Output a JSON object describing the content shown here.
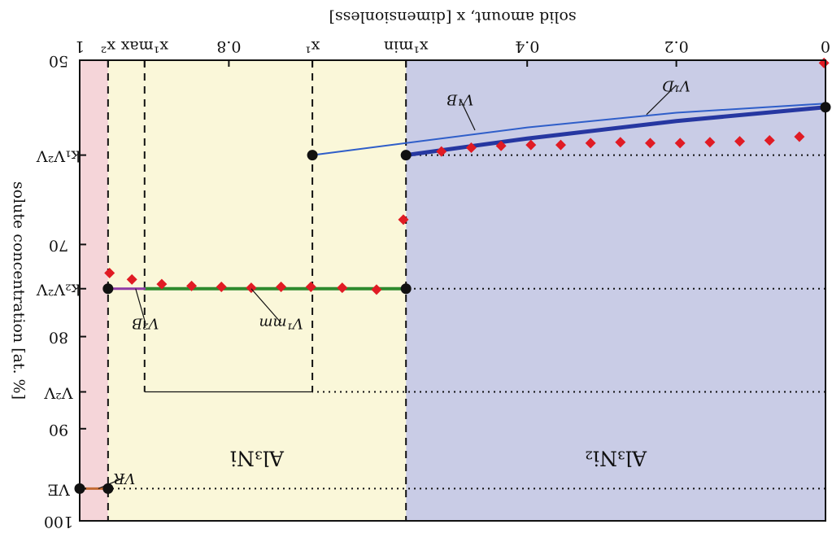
{
  "chart_data": {
    "type": "line",
    "orientation_note": "image is rotated 180 degrees",
    "xlabel": "solid amount, x [dimensionless]",
    "ylabel": "solute concentration [at. %]",
    "xlim": [
      0,
      1
    ],
    "ylim": [
      50,
      100
    ],
    "x_ticks": [
      {
        "value": 0,
        "label": "0"
      },
      {
        "value": 0.2,
        "label": "0.2"
      },
      {
        "value": 0.4,
        "label": "0.4"
      },
      {
        "value": 0.5625,
        "label": "x¹min"
      },
      {
        "value": 0.688,
        "label": "x¹"
      },
      {
        "value": 0.8,
        "label": "0.8"
      },
      {
        "value": 0.913,
        "label": "x¹max"
      },
      {
        "value": 0.962,
        "label": "x²"
      },
      {
        "value": 1,
        "label": "1"
      }
    ],
    "y_ticks": [
      {
        "value": 50,
        "label": "50"
      },
      {
        "value": 60.3,
        "label": "k₁V²V"
      },
      {
        "value": 70,
        "label": "70"
      },
      {
        "value": 74.8,
        "label": "k₂V²V"
      },
      {
        "value": 80,
        "label": "80"
      },
      {
        "value": 86,
        "label": "V²V"
      },
      {
        "value": 90,
        "label": "90"
      },
      {
        "value": 96.5,
        "label": "VE"
      },
      {
        "value": 100,
        "label": "100"
      }
    ],
    "regions": [
      {
        "label": "Al₃Ni₂",
        "x": [
          0,
          0.5625
        ],
        "color": "#c9cce6"
      },
      {
        "label": "Al₃Ni",
        "x": [
          0.5625,
          0.962
        ],
        "color": "#faf7d9"
      },
      {
        "label": "",
        "x": [
          0.962,
          1
        ],
        "color": "#f5d5d9"
      }
    ],
    "series": [
      {
        "color": "#2637a1",
        "x": [
          0,
          0.2,
          0.4,
          0.5625
        ],
        "y": [
          55.1,
          56.6,
          58.5,
          60.3
        ]
      },
      {
        "color": "#2f5ec9",
        "x": [
          0,
          0.2,
          0.4,
          0.688
        ],
        "y": [
          54.7,
          55.7,
          57.3,
          60.3
        ]
      },
      {
        "color": "#2d8a2d",
        "x": [
          0.5625,
          0.913
        ],
        "y": [
          74.8,
          74.8
        ]
      },
      {
        "color": "#8e3aa6",
        "x": [
          0.913,
          0.962
        ],
        "y": [
          74.8,
          74.8
        ]
      },
      {
        "color": "#c46b34",
        "x": [
          0.962,
          1
        ],
        "y": [
          96.5,
          96.5
        ]
      }
    ],
    "markers": {
      "color": "#e01b24",
      "x": [
        0.002,
        0.035,
        0.075,
        0.115,
        0.155,
        0.195,
        0.235,
        0.275,
        0.315,
        0.355,
        0.395,
        0.435,
        0.475,
        0.515,
        0.566,
        0.602,
        0.648,
        0.69,
        0.73,
        0.77,
        0.81,
        0.85,
        0.89,
        0.93,
        0.96
      ],
      "y": [
        50.3,
        58.3,
        58.7,
        58.8,
        58.9,
        59,
        59,
        58.9,
        59,
        59.2,
        59.2,
        59.3,
        59.5,
        59.9,
        67.3,
        74.9,
        74.7,
        74.6,
        74.6,
        74.7,
        74.6,
        74.5,
        74.3,
        73.8,
        73.1
      ]
    },
    "nodes": {
      "x": [
        0.5625,
        0.688,
        0.5625,
        0.962,
        0.962,
        1
      ],
      "y": [
        60.3,
        60.3,
        74.8,
        74.8,
        96.5,
        96.5
      ]
    },
    "annotations": [
      {
        "label": "V¹D",
        "x": 0.22,
        "y": 55.1
      },
      {
        "label": "V¹B",
        "x": 0.45,
        "y": 57.8
      },
      {
        "label": "V¹mm",
        "x": 0.78,
        "y": 74.8
      },
      {
        "label": "V²B",
        "x": 0.925,
        "y": 74.8
      },
      {
        "label": "VR",
        "x": 0.97,
        "y": 96.5
      }
    ]
  }
}
